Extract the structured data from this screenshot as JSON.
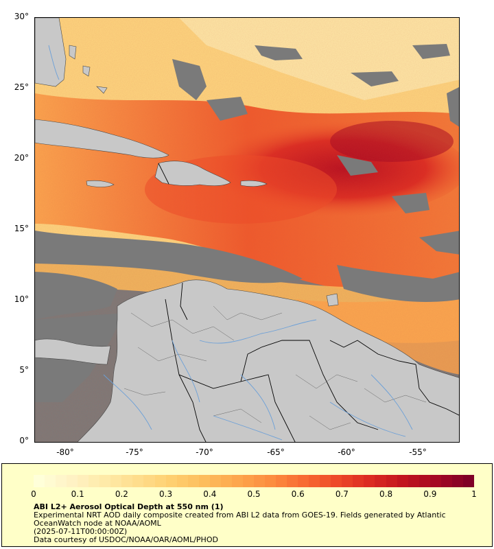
{
  "map": {
    "lat_ticks": [
      "30°",
      "25°",
      "20°",
      "15°",
      "10°",
      "5°",
      "0°"
    ],
    "lon_ticks": [
      "-80°",
      "-75°",
      "-70°",
      "-65°",
      "-60°",
      "-55°"
    ],
    "extent": {
      "lon_min": -82,
      "lon_max": -51,
      "lat_min": 0,
      "lat_max": 30
    },
    "land_color": "#c8c8c8",
    "nodata_color": "#7a7a7a",
    "border_color": "#000000",
    "river_color": "#6a9fd8"
  },
  "colorbar": {
    "ticks": [
      "0",
      "0.1",
      "0.2",
      "0.3",
      "0.4",
      "0.5",
      "0.6",
      "0.7",
      "0.8",
      "0.9",
      "1"
    ],
    "colors": [
      "#ffffd9",
      "#fff2c4",
      "#feeaa8",
      "#fedd8c",
      "#fecf70",
      "#fdbd5c",
      "#fda64d",
      "#fc8d3f",
      "#f86b33",
      "#ee4a28",
      "#dc2b22",
      "#c2141e",
      "#a50823",
      "#800026"
    ]
  },
  "legend": {
    "title": "ABI L2+ Aerosol Optical Depth at 550 nm (1)",
    "line1": "Experimental NRT AOD daily composite created from ABI L2 data from GOES-19. Fields generated by Atlantic OceanWatch node at NOAA/AOML",
    "line2": "(2025-07-11T00:00:00Z)",
    "line3": "Data courtesy of USDOC/NOAA/OAR/AOML/PHOD"
  }
}
